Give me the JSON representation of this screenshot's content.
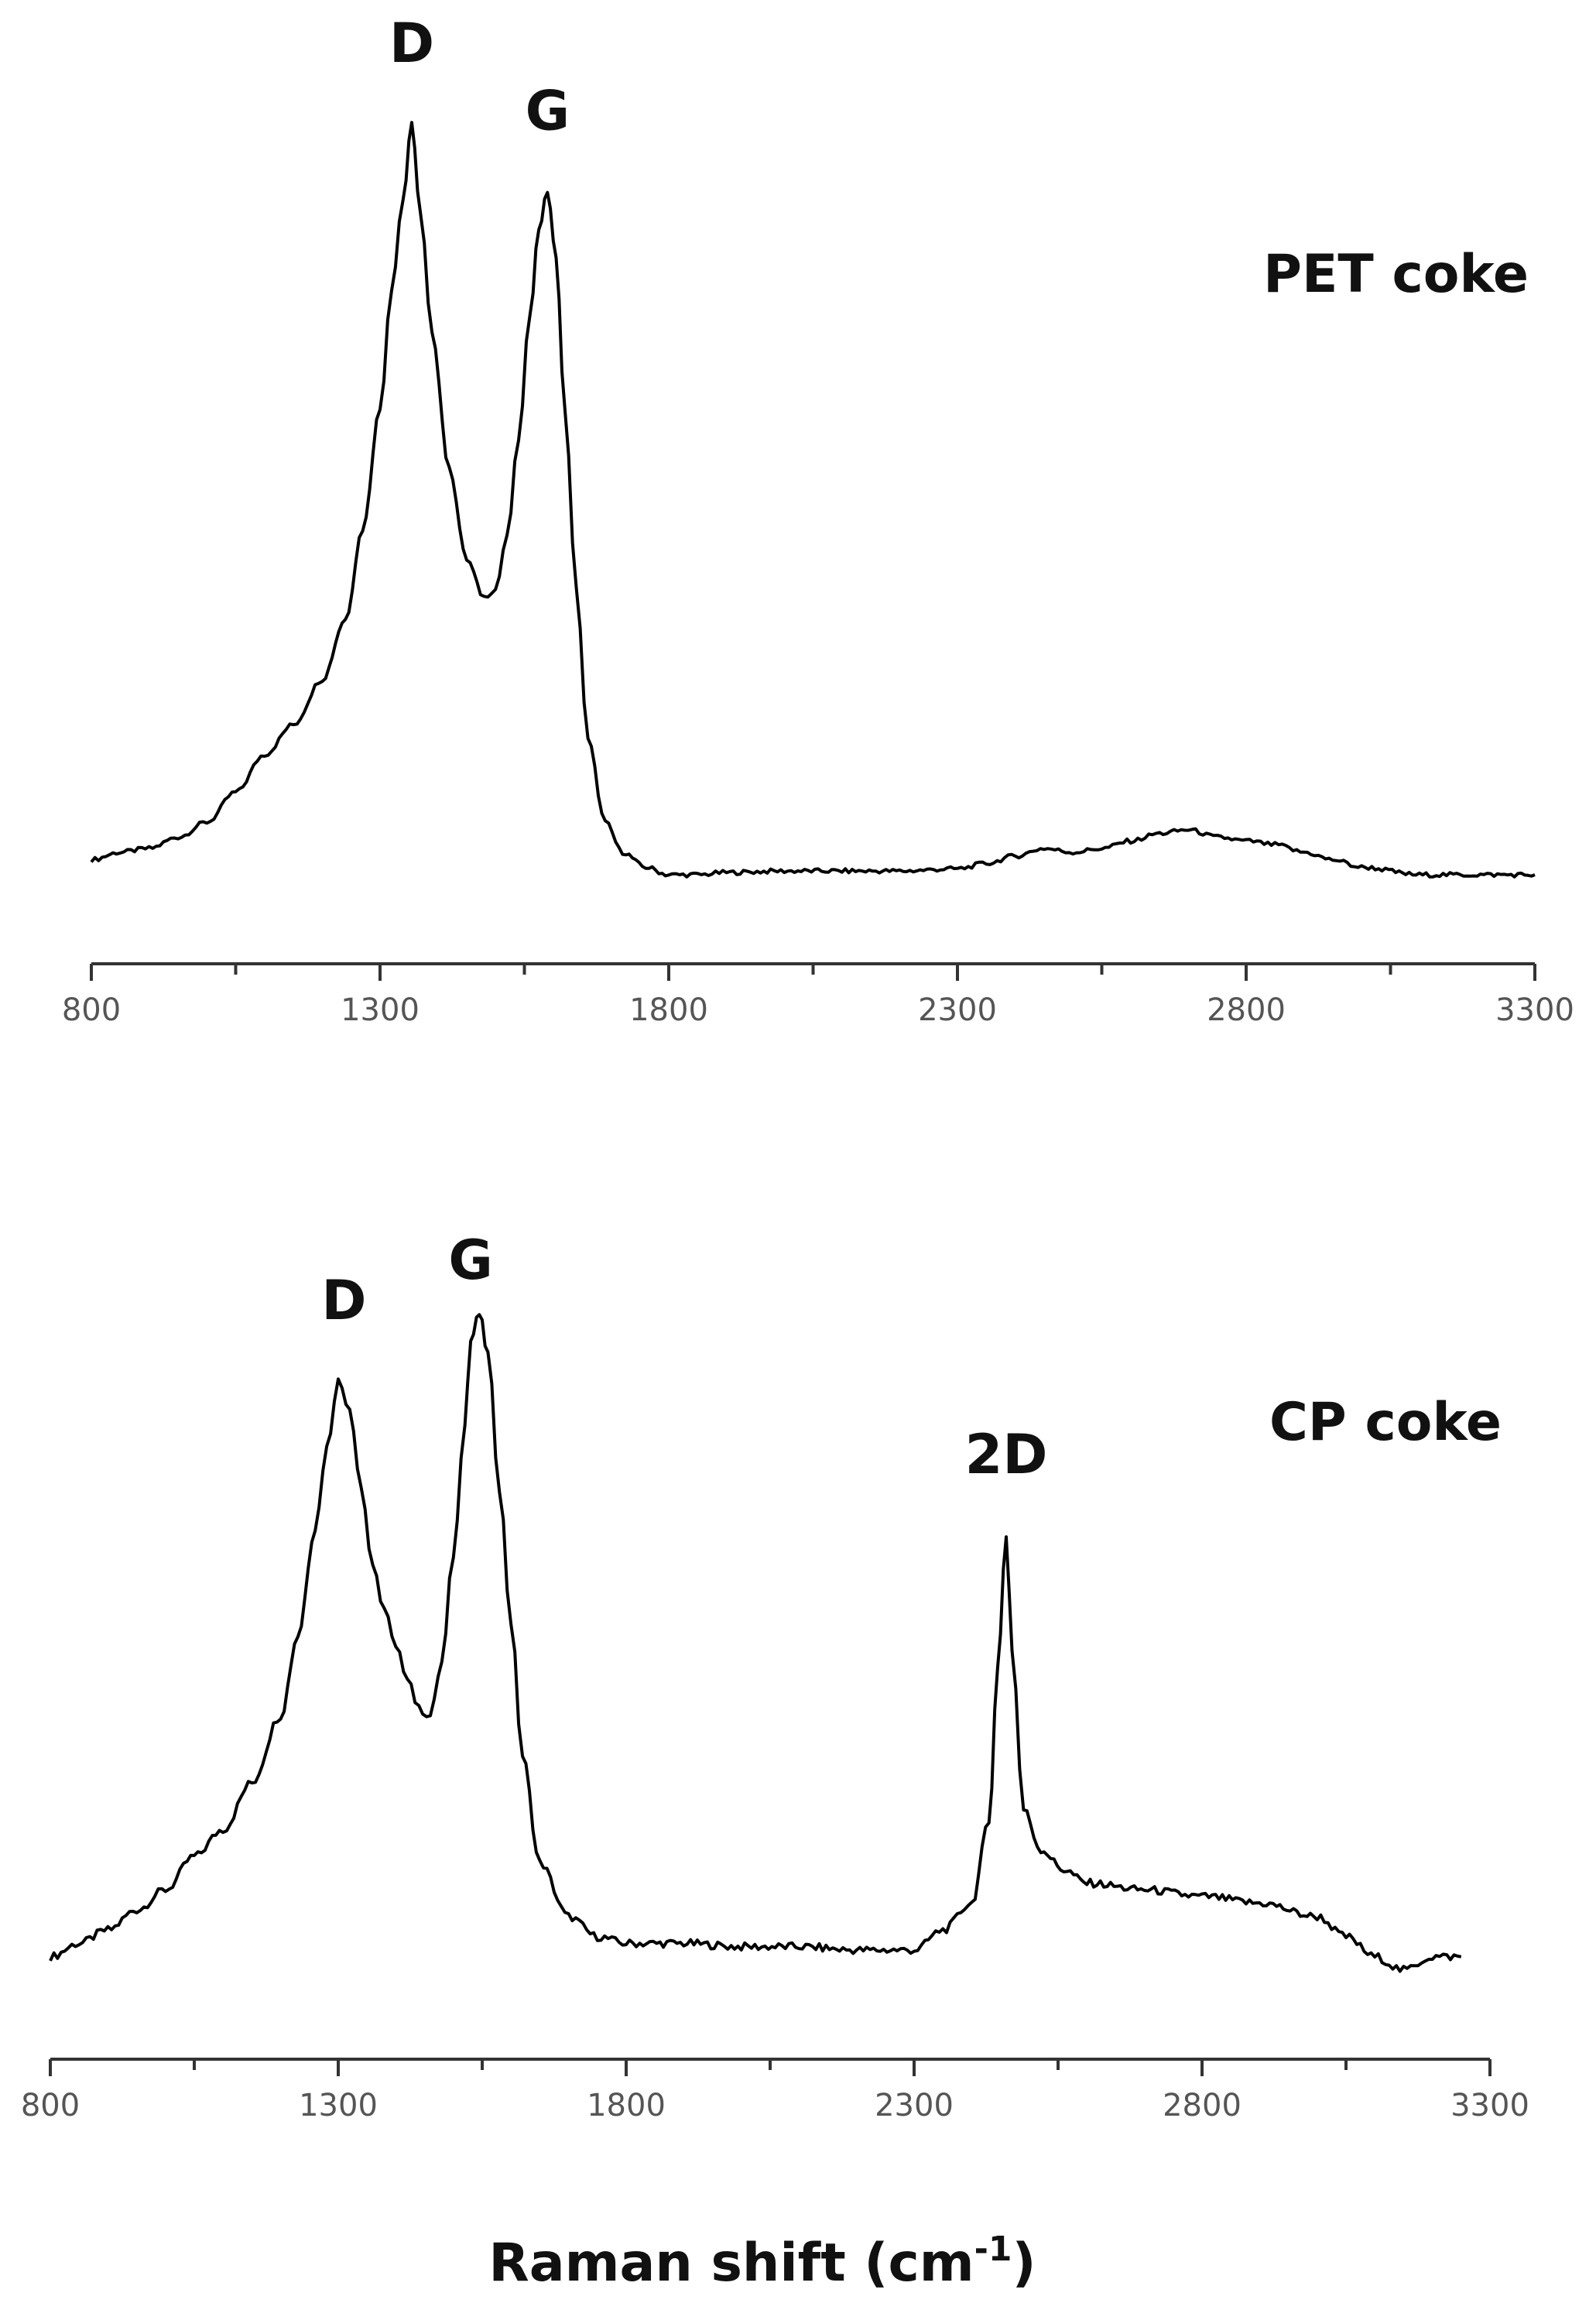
{
  "chart_data": [
    {
      "type": "line",
      "title": "",
      "xlabel": "",
      "ylabel": "",
      "sample_label": "PET coke",
      "xlim": [
        800,
        3300
      ],
      "ylim": [
        0,
        1
      ],
      "grid": false,
      "xticks": [
        "800",
        "1300",
        "1800",
        "2300",
        "2800",
        "3300"
      ],
      "annotations": [
        {
          "text": "D",
          "x": 1355
        },
        {
          "text": "G",
          "x": 1590
        }
      ],
      "series": [
        {
          "x": [
            800,
            850,
            900,
            950,
            1000,
            1050,
            1100,
            1150,
            1200,
            1240,
            1270,
            1300,
            1320,
            1340,
            1355,
            1370,
            1390,
            1420,
            1450,
            1480,
            1500,
            1520,
            1540,
            1560,
            1575,
            1590,
            1605,
            1620,
            1640,
            1660,
            1690,
            1720,
            1760,
            1800,
            1850,
            1900,
            2000,
            2100,
            2200,
            2300,
            2350,
            2400,
            2450,
            2500,
            2550,
            2600,
            2650,
            2700,
            2750,
            2800,
            2850,
            2900,
            2950,
            3000,
            3100,
            3200,
            3300
          ],
          "y": [
            0.02,
            0.03,
            0.035,
            0.05,
            0.07,
            0.11,
            0.16,
            0.2,
            0.26,
            0.34,
            0.46,
            0.62,
            0.78,
            0.9,
            1.0,
            0.88,
            0.72,
            0.54,
            0.42,
            0.37,
            0.38,
            0.45,
            0.58,
            0.75,
            0.86,
            0.91,
            0.82,
            0.62,
            0.38,
            0.18,
            0.07,
            0.03,
            0.01,
            0.0,
            0.0,
            0.003,
            0.005,
            0.005,
            0.005,
            0.008,
            0.015,
            0.025,
            0.035,
            0.03,
            0.035,
            0.045,
            0.055,
            0.06,
            0.05,
            0.045,
            0.04,
            0.03,
            0.02,
            0.01,
            0.0,
            0.0,
            0.0
          ]
        }
      ]
    },
    {
      "type": "line",
      "title": "",
      "xlabel": "Raman shift (cm",
      "xlabel_superscript": "-1",
      "xlabel_close": ")",
      "ylabel": "",
      "sample_label": "CP coke",
      "xlim": [
        800,
        3300
      ],
      "ylim": [
        0,
        1
      ],
      "grid": false,
      "xticks": [
        "800",
        "1300",
        "1800",
        "2300",
        "2800",
        "3300"
      ],
      "annotations": [
        {
          "text": "D",
          "x": 1310
        },
        {
          "text": "G",
          "x": 1530
        },
        {
          "text": "2D",
          "x": 2460
        }
      ],
      "series": [
        {
          "x": [
            800,
            850,
            900,
            950,
            1000,
            1050,
            1100,
            1150,
            1200,
            1230,
            1260,
            1280,
            1300,
            1320,
            1340,
            1360,
            1380,
            1400,
            1420,
            1440,
            1460,
            1480,
            1500,
            1520,
            1530,
            1545,
            1560,
            1580,
            1600,
            1620,
            1650,
            1700,
            1750,
            1800,
            1900,
            2000,
            2100,
            2200,
            2300,
            2350,
            2400,
            2430,
            2445,
            2460,
            2470,
            2490,
            2520,
            2560,
            2600,
            2700,
            2800,
            2900,
            3000,
            3050,
            3100,
            3150,
            3200,
            3250
          ],
          "y": [
            0.02,
            0.04,
            0.06,
            0.09,
            0.12,
            0.17,
            0.21,
            0.28,
            0.38,
            0.5,
            0.66,
            0.78,
            0.88,
            0.84,
            0.72,
            0.6,
            0.54,
            0.48,
            0.44,
            0.39,
            0.38,
            0.46,
            0.62,
            0.82,
            0.94,
            0.98,
            0.92,
            0.72,
            0.52,
            0.32,
            0.16,
            0.08,
            0.05,
            0.04,
            0.04,
            0.035,
            0.035,
            0.03,
            0.03,
            0.06,
            0.1,
            0.22,
            0.45,
            0.65,
            0.48,
            0.24,
            0.18,
            0.15,
            0.13,
            0.12,
            0.11,
            0.1,
            0.08,
            0.05,
            0.02,
            0.0,
            0.02,
            0.02
          ]
        }
      ]
    }
  ]
}
